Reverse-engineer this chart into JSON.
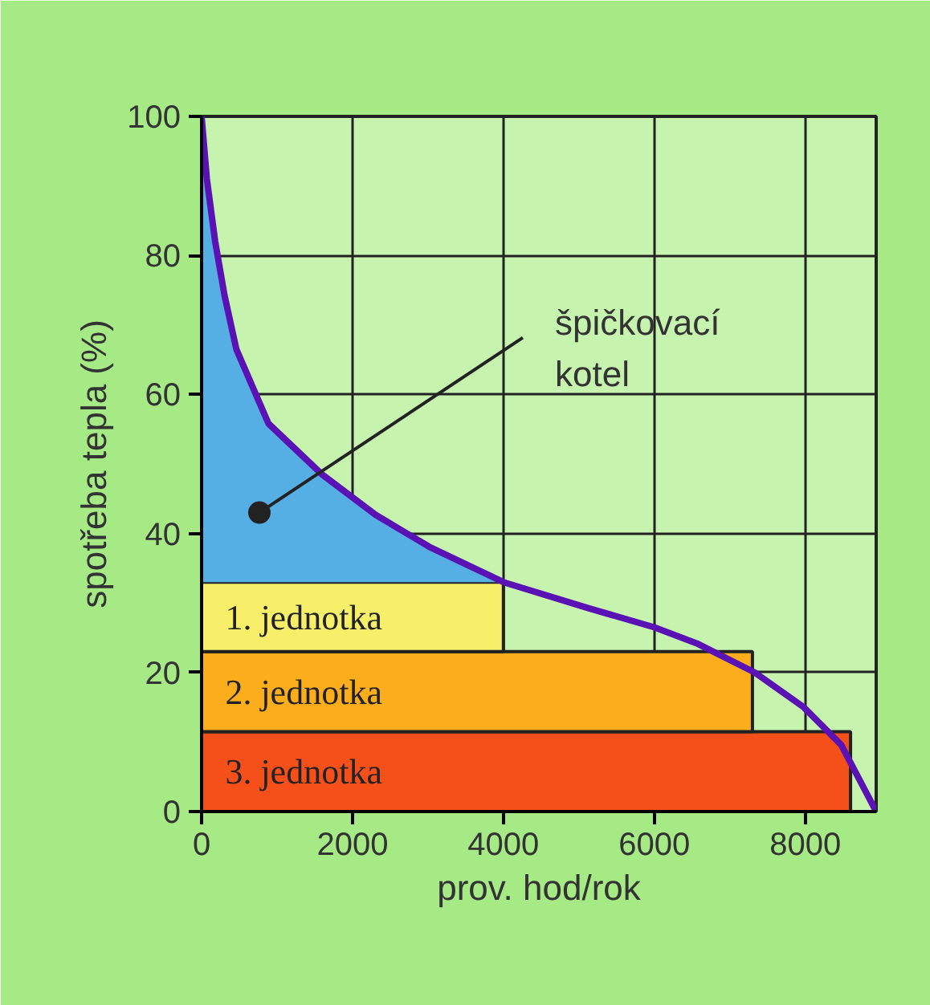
{
  "chart_data": {
    "type": "area",
    "stacked": true,
    "xlabel": "prov. hod/rok",
    "ylabel": "spotřeba tepla (%)",
    "xlim": [
      0,
      8940
    ],
    "ylim": [
      0,
      100
    ],
    "xticks": [
      0,
      2000,
      4000,
      6000,
      8000
    ],
    "yticks": [
      0,
      20,
      40,
      60,
      80,
      100
    ],
    "grid": true,
    "series": [
      {
        "name": "3. jednotka",
        "color": "#f5501a",
        "x": [
          0,
          70,
          180,
          305,
          461,
          887,
          1596,
          2305,
          3015,
          4000,
          7300,
          8600
        ],
        "values": [
          11.5,
          11.5,
          11.5,
          11.5,
          11.5,
          11.5,
          11.5,
          11.5,
          11.5,
          11.5,
          11.5,
          11.5
        ]
      },
      {
        "name": "2. jednotka",
        "color": "#fbad1c",
        "x": [
          0,
          70,
          180,
          305,
          461,
          887,
          1596,
          2305,
          3015,
          4000,
          7300
        ],
        "values": [
          11.5,
          11.5,
          11.5,
          11.5,
          11.5,
          11.5,
          11.5,
          11.5,
          11.5,
          11.5,
          11.5
        ]
      },
      {
        "name": "1. jednotka",
        "color": "#f7ef6a",
        "x": [
          0,
          70,
          180,
          305,
          461,
          887,
          1596,
          2305,
          3015,
          4000
        ],
        "values": [
          10,
          10,
          10,
          10,
          10,
          10,
          10,
          10,
          10,
          10
        ]
      },
      {
        "color": "#55aee4",
        "x": [
          0,
          70,
          180,
          305,
          461,
          887,
          1596,
          2305,
          3015,
          4000
        ],
        "values": [
          67,
          58,
          49,
          41.2,
          33.5,
          22.8,
          15.5,
          9.7,
          5.1,
          0
        ]
      },
      {
        "type": "line",
        "color": "#5a12b4",
        "x": [
          0,
          70,
          180,
          305,
          461,
          887,
          1596,
          2305,
          3015,
          4000,
          5143,
          6000,
          6561,
          7330,
          7980,
          8476,
          8940
        ],
        "values": [
          100,
          91,
          82,
          74.2,
          66.5,
          55.8,
          48.5,
          42.7,
          38.1,
          33,
          29.2,
          26.5,
          24.2,
          20,
          15,
          9.6,
          0
        ]
      }
    ],
    "annotations": [
      {
        "text": "špičkovací\nkotel",
        "x": 766,
        "y": 43
      }
    ]
  }
}
